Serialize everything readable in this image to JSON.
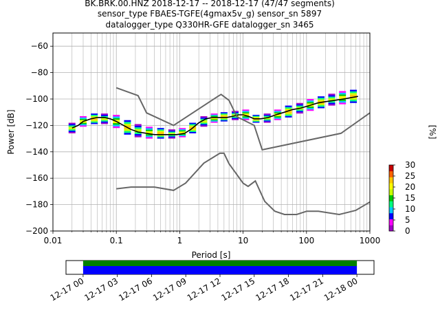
{
  "title": {
    "line1": "BK.BRK.00.HNZ   2018-12-17 -- 2018-12-17  (47/47 segments)",
    "line2": "sensor_type FBAES-TGFE(4gmax5v_g) sensor_sn 5897",
    "line3": "datalogger_type Q330HR-GFE datalogger_sn 3465"
  },
  "chart_data": [
    {
      "type": "heatmap",
      "xlabel": "Period [s]",
      "ylabel": "Power [dB]",
      "xscale": "log",
      "xlim": [
        0.01,
        1000
      ],
      "ylim": [
        -200,
        -50
      ],
      "grid": true,
      "x_tick_labels": [
        "0.01",
        "0.1",
        "1",
        "10",
        "100",
        "1000"
      ],
      "x_ticks": [
        0.01,
        0.1,
        1,
        10,
        100,
        1000
      ],
      "y_tick_labels": [
        "−200",
        "−180",
        "−160",
        "−140",
        "−120",
        "−100",
        "−80",
        "−60"
      ],
      "y_ticks": [
        -200,
        -180,
        -160,
        -140,
        -120,
        -100,
        -80,
        -60
      ],
      "colorbar": {
        "label": "[%]",
        "range": [
          0,
          30
        ],
        "ticks": [
          0,
          5,
          10,
          15,
          20,
          25,
          30
        ],
        "tick_labels": [
          "0",
          "5",
          "10",
          "15",
          "20",
          "25",
          "30"
        ],
        "colormap": [
          "#ffffff",
          "#a000c8",
          "#ff00ff",
          "#0000ff",
          "#00c8ff",
          "#00ff80",
          "#00c800",
          "#c8ff00",
          "#ffff00",
          "#ffc800",
          "#ff6400",
          "#c80000"
        ]
      },
      "ppsd_mean": {
        "x": [
          0.02,
          0.025,
          0.03,
          0.04,
          0.05,
          0.065,
          0.08,
          0.1,
          0.13,
          0.17,
          0.22,
          0.3,
          0.4,
          0.55,
          0.7,
          0.9,
          1.2,
          1.5,
          2,
          2.6,
          3.3,
          4.2,
          5.5,
          7,
          8.5,
          10,
          12,
          15,
          19,
          25,
          33,
          45,
          60,
          80,
          110,
          150,
          200,
          280,
          380,
          500,
          650
        ],
        "y": [
          -122,
          -120,
          -117,
          -115,
          -114,
          -114,
          -115,
          -117,
          -120,
          -123,
          -125,
          -126,
          -127,
          -127,
          -127,
          -127,
          -126,
          -123,
          -118,
          -115,
          -114,
          -114,
          -114,
          -113,
          -112,
          -112,
          -113,
          -115,
          -115,
          -114,
          -112,
          -110,
          -108,
          -107,
          -105,
          -103,
          -102,
          -101,
          -100,
          -99,
          -98
        ]
      },
      "ppsd_bins": [
        {
          "x": 0.02,
          "y": [
            -126,
            -118
          ]
        },
        {
          "x": 0.03,
          "y": [
            -121,
            -113
          ]
        },
        {
          "x": 0.045,
          "y": [
            -119,
            -111
          ]
        },
        {
          "x": 0.065,
          "y": [
            -119,
            -111
          ]
        },
        {
          "x": 0.1,
          "y": [
            -122,
            -112
          ]
        },
        {
          "x": 0.15,
          "y": [
            -127,
            -116
          ]
        },
        {
          "x": 0.22,
          "y": [
            -129,
            -119
          ]
        },
        {
          "x": 0.33,
          "y": [
            -130,
            -121
          ]
        },
        {
          "x": 0.5,
          "y": [
            -130,
            -122
          ]
        },
        {
          "x": 0.75,
          "y": [
            -130,
            -123
          ]
        },
        {
          "x": 1.1,
          "y": [
            -129,
            -122
          ]
        },
        {
          "x": 1.6,
          "y": [
            -126,
            -118
          ]
        },
        {
          "x": 2.4,
          "y": [
            -121,
            -113
          ]
        },
        {
          "x": 3.5,
          "y": [
            -118,
            -111
          ]
        },
        {
          "x": 5,
          "y": [
            -117,
            -110
          ]
        },
        {
          "x": 7.5,
          "y": [
            -116,
            -109
          ]
        },
        {
          "x": 11,
          "y": [
            -116,
            -108
          ]
        },
        {
          "x": 16,
          "y": [
            -118,
            -112
          ]
        },
        {
          "x": 24,
          "y": [
            -118,
            -111
          ]
        },
        {
          "x": 35,
          "y": [
            -116,
            -108
          ]
        },
        {
          "x": 52,
          "y": [
            -114,
            -105
          ]
        },
        {
          "x": 78,
          "y": [
            -111,
            -103
          ]
        },
        {
          "x": 115,
          "y": [
            -109,
            -100
          ]
        },
        {
          "x": 170,
          "y": [
            -107,
            -98
          ]
        },
        {
          "x": 250,
          "y": [
            -105,
            -96
          ]
        },
        {
          "x": 370,
          "y": [
            -104,
            -94
          ]
        },
        {
          "x": 550,
          "y": [
            -103,
            -93
          ]
        }
      ],
      "noise_models": [
        {
          "x": [
            0.1,
            0.22,
            0.3,
            0.8,
            4.0,
            4.5,
            6.0,
            8.0,
            15.0,
            20.0,
            350.0,
            1000.0
          ],
          "y": [
            -91.5,
            -97.4,
            -110.5,
            -120.0,
            -98.0,
            -96.5,
            -101.0,
            -113.5,
            -120.0,
            -138.5,
            -126.0,
            -110.5
          ]
        },
        {
          "x": [
            0.1,
            0.17,
            0.4,
            0.8,
            1.24,
            2.4,
            4.3,
            5.0,
            6.0,
            10.0,
            12.0,
            15.6,
            21.9,
            31.6,
            45.0,
            70.0,
            101.0,
            154.0,
            328.0,
            600.0,
            1000.0
          ],
          "y": [
            -168.0,
            -166.7,
            -166.7,
            -169.2,
            -163.7,
            -148.6,
            -141.1,
            -141.1,
            -149.0,
            -163.8,
            -166.2,
            -162.1,
            -177.5,
            -185.0,
            -187.5,
            -187.5,
            -185.0,
            -185.0,
            -187.5,
            -184.4,
            -178.0
          ]
        }
      ]
    },
    {
      "type": "bar",
      "xlabel": "",
      "x_tick_labels": [
        "12-17 00",
        "12-17 03",
        "12-17 06",
        "12-17 09",
        "12-17 12",
        "12-17 15",
        "12-17 18",
        "12-17 21",
        "12-18 00"
      ],
      "x_range_hours": [
        -1.5,
        25.5
      ],
      "coverage": [
        {
          "start_hour": 0,
          "end_hour": 24,
          "color": "#008000"
        },
        {
          "start_hour": 0,
          "end_hour": 24,
          "color": "#0000ff"
        }
      ]
    }
  ]
}
